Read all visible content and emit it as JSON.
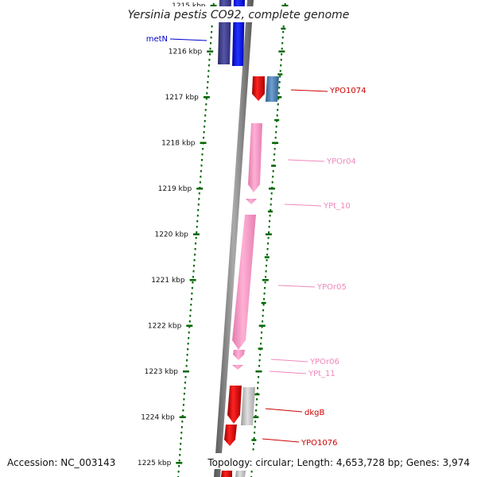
{
  "header": {
    "title": "Yersinia pestis CO92, complete genome"
  },
  "footer": {
    "accession": "Accession: NC_003143",
    "topology": "Topology: circular; Length: 4,653,728 bp; Genes: 3,974"
  },
  "scale": {
    "tick_labels": [
      "1215 kbp",
      "1216 kbp",
      "1217 kbp",
      "1218 kbp",
      "1219 kbp",
      "1220 kbp",
      "1221 kbp",
      "1222 kbp",
      "1223 kbp",
      "1224 kbp",
      "1225 kbp"
    ]
  },
  "features": [
    {
      "name": "metN",
      "color": "#0000cc",
      "strand": "minus"
    },
    {
      "name": "YPO1074",
      "color": "#cc0000",
      "strand": "plus"
    },
    {
      "name": "YPOr04",
      "color": "#ee88bb",
      "strand": "plus"
    },
    {
      "name": "YPt_10",
      "color": "#ee88bb",
      "strand": "plus"
    },
    {
      "name": "YPOr05",
      "color": "#ee88bb",
      "strand": "plus"
    },
    {
      "name": "YPOr06",
      "color": "#ee88bb",
      "strand": "plus"
    },
    {
      "name": "YPt_11",
      "color": "#ee88bb",
      "strand": "plus"
    },
    {
      "name": "dkgB",
      "color": "#cc0000",
      "strand": "plus"
    },
    {
      "name": "YPO1076",
      "color": "#cc0000",
      "strand": "plus"
    }
  ],
  "colors": {
    "tick_green": "#006600",
    "backbone": "#777777",
    "cds_red": "#ee0000",
    "cds_blue": "#0000ff",
    "cds_navy": "#3a3a8a",
    "cds_steel": "#4682b4",
    "rna_pink": "#ff99cc",
    "cds_grey": "#bbbbbb"
  }
}
